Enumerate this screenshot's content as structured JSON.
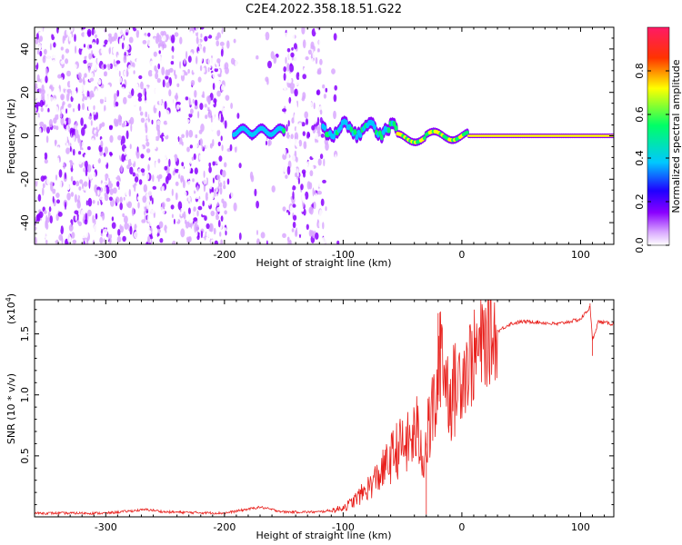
{
  "title": "C2E4.2022.358.18.51.G22",
  "chart_data": [
    {
      "type": "heatmap",
      "panel": "spectrogram",
      "xlabel": "Height of straight line (km)",
      "ylabel": "Frequency (Hz)",
      "xlim": [
        -360,
        128
      ],
      "ylim": [
        -50,
        50
      ],
      "xticks": [
        -300,
        -200,
        -100,
        0,
        100
      ],
      "yticks": [
        -40,
        -20,
        0,
        20,
        40
      ],
      "colorbar": {
        "label": "Normalized spectral amplitude",
        "range": [
          0,
          1
        ],
        "ticks": [
          "0.0",
          "0.2",
          "0.4",
          "0.6",
          "0.8"
        ],
        "colors": [
          "#ffffff",
          "#d9a8ff",
          "#8a00ff",
          "#1f00ff",
          "#00c8ff",
          "#00ff66",
          "#ffff00",
          "#ff3300",
          "#ff1a66"
        ]
      },
      "regions": [
        {
          "x": [
            -360,
            -200
          ],
          "description_values": {
            "freq_center": 0,
            "amplitude": 0.15
          }
        },
        {
          "x": [
            -190,
            -152
          ],
          "freq_center": 2,
          "amplitude": 0.45
        },
        {
          "x": [
            -115,
            -55
          ],
          "freq_center": 3,
          "amplitude": 0.5
        },
        {
          "x": [
            -55,
            5
          ],
          "freq_center": 0.5,
          "amplitude": 0.7
        },
        {
          "x": [
            5,
            128
          ],
          "freq_center": 0,
          "amplitude": 0.85
        }
      ]
    },
    {
      "type": "line",
      "panel": "snr",
      "xlabel": "Height of straight line (km)",
      "ylabel": "SNR (10 * v/v)",
      "scale_label": "(x10",
      "scale_exp": "4",
      "xlim": [
        -360,
        128
      ],
      "ylim": [
        0,
        1.78
      ],
      "xticks": [
        -300,
        -200,
        -100,
        0,
        100
      ],
      "yticks": [
        0.5,
        1.0,
        1.5
      ],
      "ytick_labels": [
        "0.5",
        "1.0",
        "1.5"
      ],
      "series": [
        {
          "color": "#e8201c",
          "x": [
            -360,
            -300,
            -265,
            -250,
            -200,
            -170,
            -160,
            -150,
            -120,
            -105,
            -95,
            -85,
            -75,
            -65,
            -55,
            -45,
            -38,
            -32,
            -25,
            -20,
            -18,
            -15,
            -10,
            -5,
            0,
            5,
            10,
            15,
            20,
            25,
            30,
            35,
            40,
            50,
            60,
            80,
            100,
            108,
            110,
            115,
            128
          ],
          "y": [
            0.03,
            0.03,
            0.06,
            0.04,
            0.03,
            0.08,
            0.06,
            0.04,
            0.04,
            0.06,
            0.1,
            0.18,
            0.28,
            0.4,
            0.55,
            0.6,
            0.7,
            0.5,
            0.85,
            1.0,
            1.65,
            1.2,
            1.0,
            1.05,
            1.2,
            1.25,
            1.3,
            1.38,
            1.45,
            1.48,
            1.52,
            1.55,
            1.58,
            1.6,
            1.6,
            1.58,
            1.62,
            1.72,
            1.45,
            1.6,
            1.58
          ]
        }
      ]
    }
  ]
}
